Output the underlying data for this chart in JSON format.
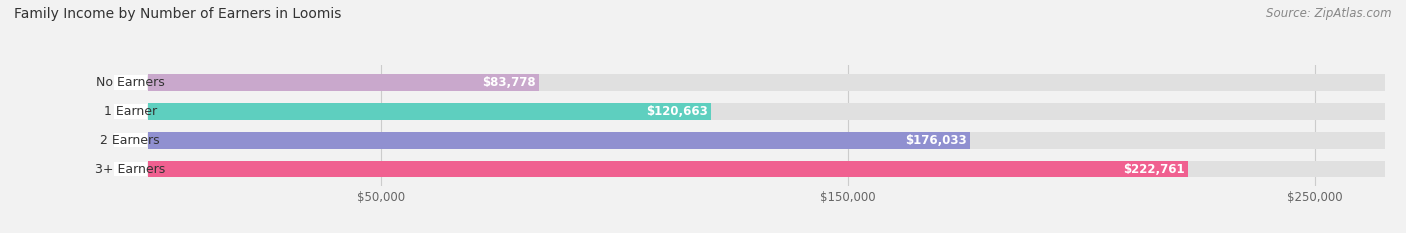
{
  "title": "Family Income by Number of Earners in Loomis",
  "source": "Source: ZipAtlas.com",
  "categories": [
    "No Earners",
    "1 Earner",
    "2 Earners",
    "3+ Earners"
  ],
  "values": [
    83778,
    120663,
    176033,
    222761
  ],
  "bar_colors": [
    "#c9a8cc",
    "#5ecfbf",
    "#9090d0",
    "#f06090"
  ],
  "label_values": [
    "$83,778",
    "$120,663",
    "$176,033",
    "$222,761"
  ],
  "x_ticks": [
    50000,
    150000,
    250000
  ],
  "x_tick_labels": [
    "$50,000",
    "$150,000",
    "$250,000"
  ],
  "xlim_max": 265000,
  "background_color": "#f2f2f2",
  "bar_bg_color": "#e0e0e0",
  "title_fontsize": 10,
  "source_fontsize": 8.5,
  "label_fontsize": 9,
  "value_fontsize": 8.5,
  "tick_fontsize": 8.5
}
